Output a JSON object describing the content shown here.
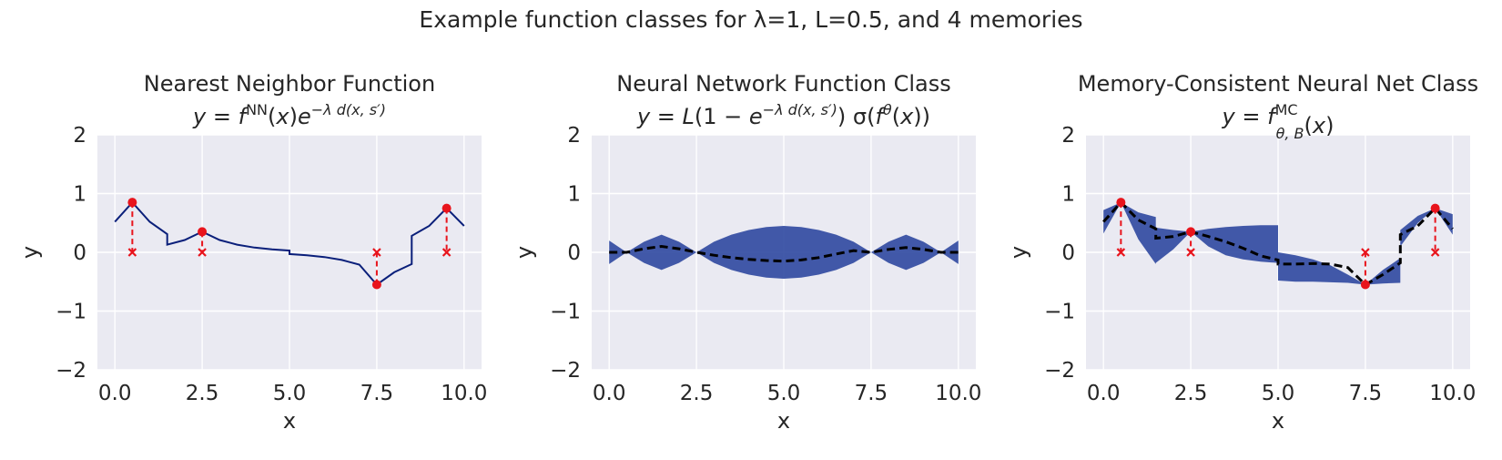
{
  "figure": {
    "title": "Example function classes for λ=1, L=0.5, and 4 memories"
  },
  "colors": {
    "panel_bg": "#eaeaf2",
    "grid": "#ffffff",
    "nn_line": "#0a1f7a",
    "band": "#2f48a0",
    "mean_line": "#000000",
    "memory": "#e8141c"
  },
  "chart_data": [
    {
      "type": "line",
      "title": "Nearest Neighbor Function",
      "formula": "y = f^NN(x) e^{−λ d(x, s′)}",
      "xlabel": "x",
      "ylabel": "y",
      "xlim": [
        -0.5,
        10.5
      ],
      "ylim": [
        -2,
        2
      ],
      "xticks": [
        "0.0",
        "2.5",
        "5.0",
        "7.5",
        "10.0"
      ],
      "yticks": [
        "−2",
        "−1",
        "0",
        "1",
        "2"
      ],
      "grid": true,
      "memories": [
        {
          "x": 0.5,
          "y": 0.85
        },
        {
          "x": 2.5,
          "y": 0.35
        },
        {
          "x": 7.5,
          "y": -0.55
        },
        {
          "x": 9.5,
          "y": 0.75
        }
      ],
      "series": [
        {
          "style": "solid",
          "x": [
            0.0,
            0.5,
            1.0,
            1.5,
            1.5,
            2.0,
            2.5,
            3.0,
            3.5,
            4.0,
            4.5,
            5.0,
            5.0,
            5.5,
            6.0,
            6.5,
            7.0,
            7.5,
            8.0,
            8.5,
            8.5,
            9.0,
            9.5,
            10.0
          ],
          "y": [
            0.52,
            0.85,
            0.52,
            0.31,
            0.13,
            0.21,
            0.35,
            0.21,
            0.13,
            0.08,
            0.05,
            0.03,
            -0.03,
            -0.05,
            -0.08,
            -0.13,
            -0.21,
            -0.55,
            -0.34,
            -0.2,
            0.28,
            0.45,
            0.75,
            0.45
          ]
        }
      ]
    },
    {
      "type": "area",
      "title": "Neural Network Function Class",
      "formula": "y = L(1 − e^{−λ d(x, s′)}) σ(f^θ(x))",
      "xlabel": "x",
      "ylabel": "y",
      "xlim": [
        -0.5,
        10.5
      ],
      "ylim": [
        -2,
        2
      ],
      "xticks": [
        "0.0",
        "2.5",
        "5.0",
        "7.5",
        "10.0"
      ],
      "yticks": [
        "−2",
        "−1",
        "0",
        "1",
        "2"
      ],
      "grid": true,
      "band": {
        "x": [
          0.0,
          0.5,
          1.0,
          1.5,
          2.0,
          2.5,
          3.0,
          3.5,
          4.0,
          4.5,
          5.0,
          5.5,
          6.0,
          6.5,
          7.0,
          7.5,
          8.0,
          8.5,
          9.0,
          9.5,
          10.0
        ],
        "upper": [
          0.2,
          0.0,
          0.18,
          0.3,
          0.18,
          0.0,
          0.18,
          0.3,
          0.38,
          0.43,
          0.45,
          0.43,
          0.38,
          0.3,
          0.18,
          0.0,
          0.18,
          0.3,
          0.18,
          0.0,
          0.2
        ],
        "lower": [
          -0.2,
          0.0,
          -0.18,
          -0.3,
          -0.18,
          0.0,
          -0.18,
          -0.3,
          -0.38,
          -0.43,
          -0.45,
          -0.43,
          -0.38,
          -0.3,
          -0.18,
          0.0,
          -0.18,
          -0.3,
          -0.18,
          0.0,
          -0.2
        ]
      },
      "series": [
        {
          "style": "dashed",
          "x": [
            0.0,
            0.5,
            1.0,
            1.5,
            2.0,
            2.5,
            3.0,
            3.5,
            4.0,
            4.5,
            5.0,
            5.5,
            6.0,
            6.5,
            7.0,
            7.5,
            8.0,
            8.5,
            9.0,
            9.5,
            10.0
          ],
          "y": [
            0.0,
            0.0,
            0.06,
            0.1,
            0.06,
            0.0,
            -0.05,
            -0.09,
            -0.12,
            -0.14,
            -0.15,
            -0.13,
            -0.09,
            -0.03,
            0.03,
            0.0,
            0.05,
            0.08,
            0.05,
            0.0,
            0.0
          ]
        }
      ]
    },
    {
      "type": "area",
      "title": "Memory-Consistent Neural Net Class",
      "formula": "y = f^MC_{θ, B}(x)",
      "xlabel": "x",
      "ylabel": "y",
      "xlim": [
        -0.5,
        10.5
      ],
      "ylim": [
        -2,
        2
      ],
      "xticks": [
        "0.0",
        "2.5",
        "5.0",
        "7.5",
        "10.0"
      ],
      "yticks": [
        "−2",
        "−1",
        "0",
        "1",
        "2"
      ],
      "grid": true,
      "memories": [
        {
          "x": 0.5,
          "y": 0.85
        },
        {
          "x": 2.5,
          "y": 0.35
        },
        {
          "x": 7.5,
          "y": -0.55
        },
        {
          "x": 9.5,
          "y": 0.75
        }
      ],
      "band": {
        "x": [
          0.0,
          0.5,
          1.0,
          1.5,
          1.5,
          2.0,
          2.5,
          3.0,
          3.5,
          4.0,
          4.5,
          5.0,
          5.0,
          5.5,
          6.0,
          6.5,
          7.0,
          7.5,
          8.0,
          8.5,
          8.5,
          9.0,
          9.5,
          10.0
        ],
        "upper": [
          0.72,
          0.85,
          0.68,
          0.6,
          0.42,
          0.38,
          0.35,
          0.4,
          0.43,
          0.45,
          0.46,
          0.46,
          0.0,
          -0.05,
          -0.12,
          -0.22,
          -0.38,
          -0.55,
          -0.3,
          -0.1,
          0.38,
          0.62,
          0.75,
          0.65
        ],
        "lower": [
          0.32,
          0.85,
          0.22,
          -0.2,
          -0.18,
          0.05,
          0.35,
          0.1,
          -0.05,
          -0.12,
          -0.16,
          -0.18,
          -0.48,
          -0.5,
          -0.5,
          -0.51,
          -0.52,
          -0.55,
          -0.53,
          -0.52,
          0.1,
          0.5,
          0.75,
          0.3
        ]
      },
      "series": [
        {
          "style": "dashed",
          "x": [
            0.0,
            0.5,
            1.0,
            1.5,
            1.5,
            2.0,
            2.5,
            3.0,
            3.5,
            4.0,
            4.5,
            5.0,
            5.0,
            5.5,
            6.0,
            6.5,
            7.0,
            7.5,
            8.0,
            8.5,
            8.5,
            9.0,
            9.5,
            10.0
          ],
          "y": [
            0.52,
            0.85,
            0.55,
            0.4,
            0.24,
            0.27,
            0.35,
            0.27,
            0.18,
            0.07,
            -0.06,
            -0.13,
            -0.2,
            -0.2,
            -0.19,
            -0.2,
            -0.26,
            -0.55,
            -0.38,
            -0.18,
            0.3,
            0.45,
            0.75,
            0.4
          ]
        }
      ]
    }
  ]
}
